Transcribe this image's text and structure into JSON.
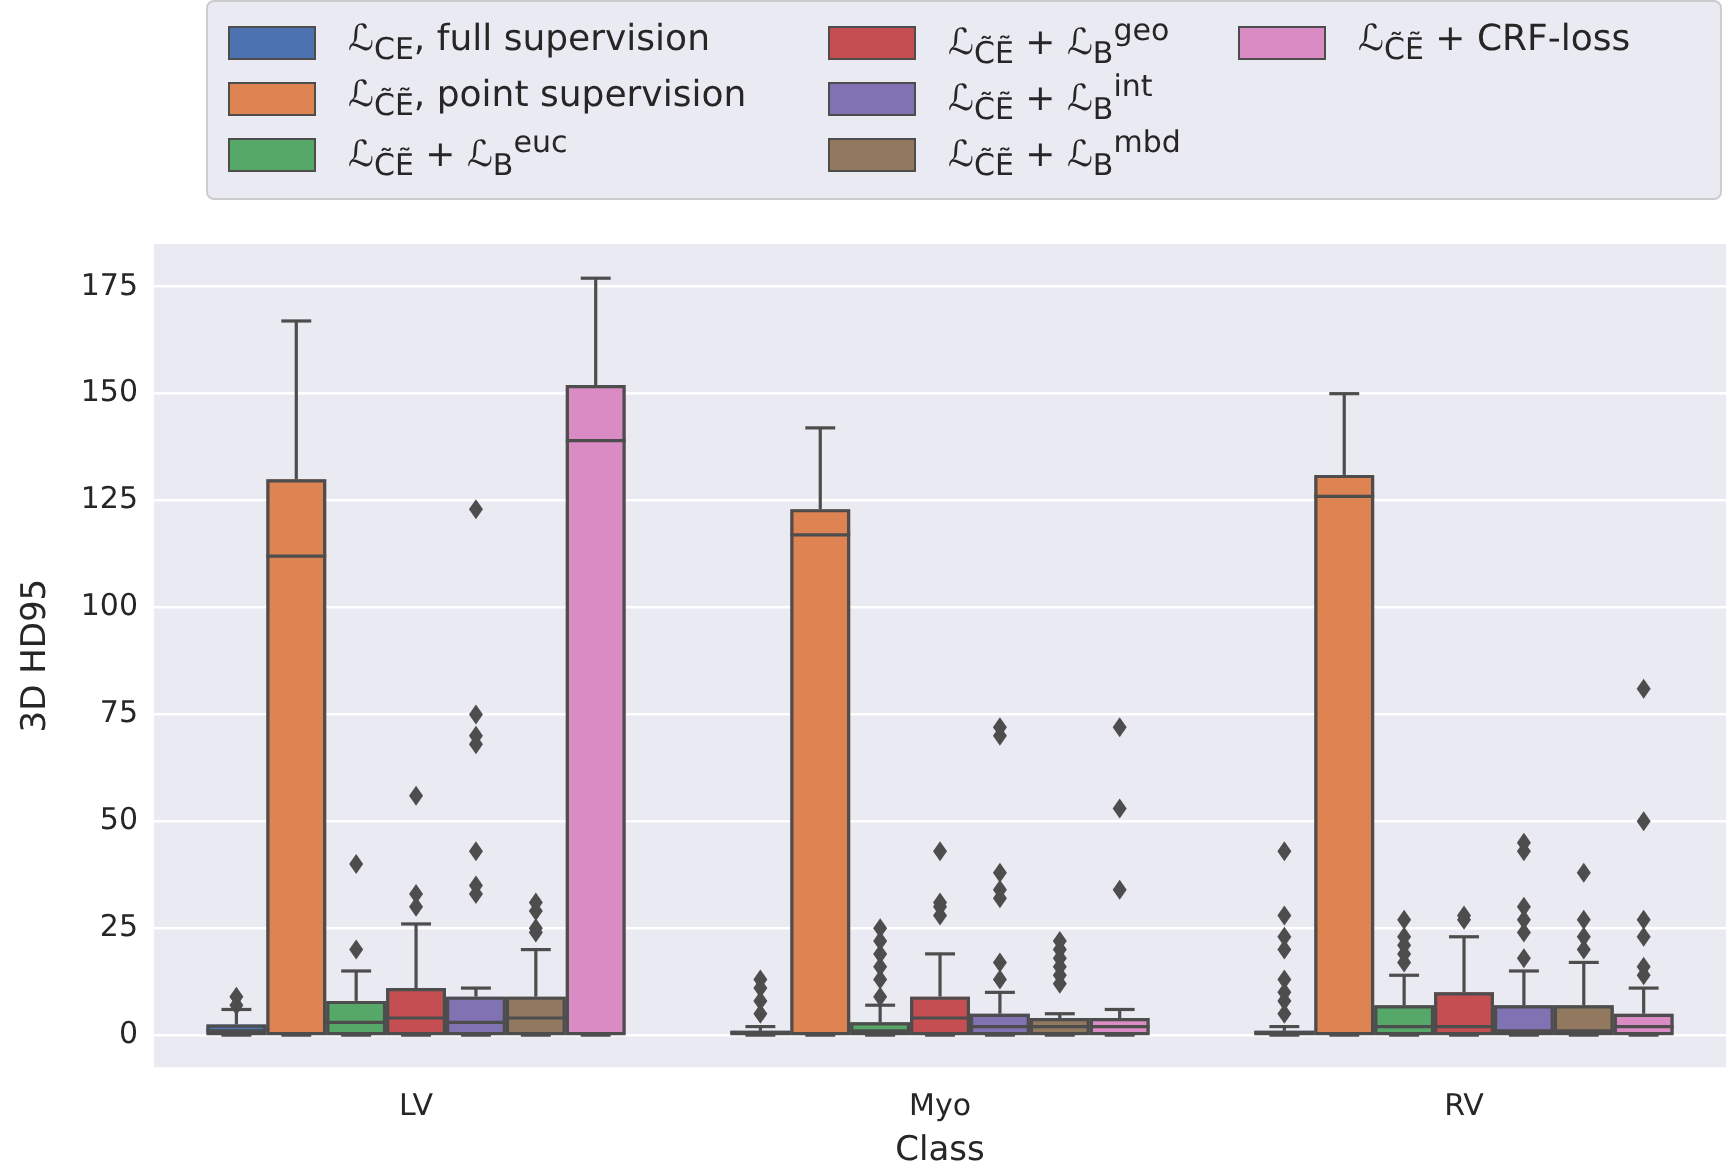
{
  "chart_data": {
    "type": "box",
    "xlabel": "Class",
    "ylabel": "3D HD95",
    "categories": [
      "LV",
      "Myo",
      "RV"
    ],
    "ylim": [
      -7.5,
      185
    ],
    "yticks": [
      0,
      25,
      50,
      75,
      100,
      125,
      150,
      175
    ],
    "grid": "y",
    "legend": "top",
    "series": [
      {
        "name": "ℒ$_{CE}$, full supervision",
        "color": "#4c72b0",
        "boxes": [
          {
            "low": 0,
            "q1": 0,
            "median": 1,
            "q3": 2.5,
            "high": 6,
            "outliers": [
              7,
              9
            ]
          },
          {
            "low": 0,
            "q1": 0,
            "median": 0.5,
            "q3": 1,
            "high": 2,
            "outliers": [
              5,
              8,
              11,
              13
            ]
          },
          {
            "low": 0,
            "q1": 0,
            "median": 0.5,
            "q3": 1,
            "high": 2,
            "outliers": [
              5,
              8,
              10,
              13,
              20,
              23,
              28,
              43
            ]
          }
        ]
      },
      {
        "name": "ℒ$_{C̃Ẽ}$, point supervision",
        "color": "#dd8452",
        "boxes": [
          {
            "low": 0,
            "q1": 0,
            "median": 112,
            "q3": 130,
            "high": 167
          },
          {
            "low": 0,
            "q1": 0,
            "median": 117,
            "q3": 123,
            "high": 142
          },
          {
            "low": 0,
            "q1": 0,
            "median": 126,
            "q3": 131,
            "high": 150
          }
        ]
      },
      {
        "name": "ℒ$_{C̃Ẽ}$ + ℒ$_{B}$$^{euc}$",
        "color": "#55a868",
        "boxes": [
          {
            "low": 0,
            "q1": 0,
            "median": 3,
            "q3": 8,
            "high": 15,
            "outliers": [
              20,
              40
            ]
          },
          {
            "low": 0,
            "q1": 0,
            "median": 1,
            "q3": 3,
            "high": 7,
            "outliers": [
              9,
              13,
              16,
              19,
              22,
              25
            ]
          },
          {
            "low": 0,
            "q1": 0,
            "median": 2,
            "q3": 7,
            "high": 14,
            "outliers": [
              17,
              19,
              21,
              23,
              27
            ]
          }
        ]
      },
      {
        "name": "ℒ$_{C̃Ẽ}$ + ℒ$_{B}$$^{geo}$",
        "color": "#c44e52",
        "boxes": [
          {
            "low": 0,
            "q1": 0,
            "median": 4,
            "q3": 11,
            "high": 26,
            "outliers": [
              30,
              33,
              56
            ]
          },
          {
            "low": 0,
            "q1": 0,
            "median": 4,
            "q3": 9,
            "high": 19,
            "outliers": [
              28,
              30,
              31,
              43
            ]
          },
          {
            "low": 0,
            "q1": 0,
            "median": 2,
            "q3": 10,
            "high": 23,
            "outliers": [
              27,
              28
            ]
          }
        ]
      },
      {
        "name": "ℒ$_{C̃Ẽ}$ + ℒ$_{B}$$^{int}$",
        "color": "#8172b3",
        "boxes": [
          {
            "low": 0,
            "q1": 0,
            "median": 3,
            "q3": 9,
            "high": 11,
            "outliers": [
              33,
              35,
              43,
              68,
              70,
              75,
              123
            ]
          },
          {
            "low": 0,
            "q1": 0,
            "median": 2,
            "q3": 5,
            "high": 10,
            "outliers": [
              13,
              17,
              32,
              34,
              38,
              70,
              72
            ]
          },
          {
            "low": 0,
            "q1": 0,
            "median": 1,
            "q3": 7,
            "high": 15,
            "outliers": [
              18,
              24,
              27,
              30,
              43,
              45
            ]
          }
        ]
      },
      {
        "name": "ℒ$_{C̃Ẽ}$ + ℒ$_{B}$$^{mbd}$",
        "color": "#937860",
        "boxes": [
          {
            "low": 0,
            "q1": 0,
            "median": 4,
            "q3": 9,
            "high": 20,
            "outliers": [
              24,
              25,
              29,
              31
            ]
          },
          {
            "low": 0,
            "q1": 0,
            "median": 2,
            "q3": 4,
            "high": 5,
            "outliers": [
              12,
              14,
              16,
              18,
              20,
              22
            ]
          },
          {
            "low": 0,
            "q1": 0,
            "median": 1,
            "q3": 7,
            "high": 17,
            "outliers": [
              20,
              23,
              27,
              38
            ]
          }
        ]
      },
      {
        "name": "ℒ$_{C̃Ẽ}$ + CRF-loss",
        "color": "#da8bc3",
        "boxes": [
          {
            "low": 0,
            "q1": 0,
            "median": 139,
            "q3": 152,
            "high": 177
          },
          {
            "low": 0,
            "q1": 0,
            "median": 2,
            "q3": 4,
            "high": 6,
            "outliers": [
              34,
              53,
              72
            ]
          },
          {
            "low": 0,
            "q1": 0,
            "median": 2,
            "q3": 5,
            "high": 11,
            "outliers": [
              14,
              16,
              23,
              27,
              50,
              81
            ]
          }
        ]
      }
    ]
  }
}
